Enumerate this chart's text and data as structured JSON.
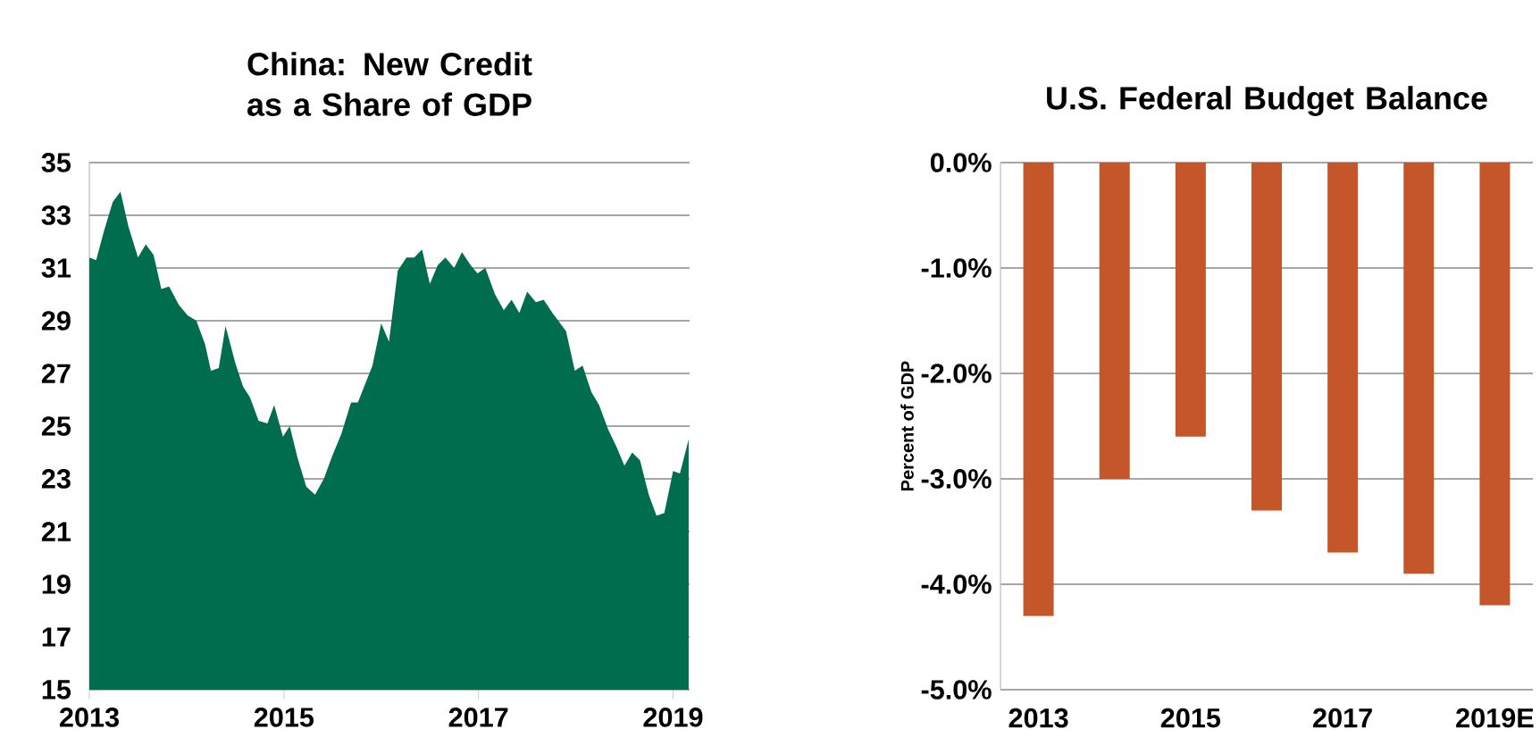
{
  "chart_data": [
    {
      "type": "area",
      "title": "China: New Credit as a Share of GDP",
      "color": "#006e4e",
      "x": [
        2013.0,
        2013.07,
        2013.15,
        2013.24,
        2013.32,
        2013.4,
        2013.5,
        2013.58,
        2013.66,
        2013.74,
        2013.82,
        2013.92,
        2014.01,
        2014.1,
        2014.19,
        2014.25,
        2014.33,
        2014.4,
        2014.5,
        2014.58,
        2014.65,
        2014.74,
        2014.83,
        2014.9,
        2014.99,
        2015.06,
        2015.14,
        2015.23,
        2015.32,
        2015.41,
        2015.5,
        2015.59,
        2015.69,
        2015.76,
        2015.91,
        2016.0,
        2016.08,
        2016.17,
        2016.26,
        2016.34,
        2016.42,
        2016.5,
        2016.58,
        2016.66,
        2016.75,
        2016.83,
        2016.92,
        2016.99,
        2017.07,
        2017.17,
        2017.26,
        2017.34,
        2017.42,
        2017.5,
        2017.59,
        2017.67,
        2017.76,
        2017.9,
        2017.99,
        2018.07,
        2018.16,
        2018.24,
        2018.33,
        2018.42,
        2018.5,
        2018.58,
        2018.66,
        2018.75,
        2018.83,
        2018.91,
        2019.0,
        2019.07,
        2019.16
      ],
      "values": [
        31.4,
        31.3,
        32.4,
        33.5,
        33.9,
        32.6,
        31.4,
        31.9,
        31.5,
        30.2,
        30.3,
        29.6,
        29.2,
        29.0,
        28.1,
        27.1,
        27.2,
        28.8,
        27.4,
        26.5,
        26.1,
        25.2,
        25.1,
        25.8,
        24.6,
        25.0,
        23.8,
        22.7,
        22.4,
        23.0,
        23.9,
        24.7,
        25.9,
        25.9,
        27.3,
        28.9,
        28.2,
        30.9,
        31.4,
        31.4,
        31.7,
        30.4,
        31.1,
        31.4,
        31.0,
        31.6,
        31.1,
        30.8,
        31.0,
        30.0,
        29.4,
        29.8,
        29.3,
        30.1,
        29.7,
        29.8,
        29.3,
        28.6,
        27.1,
        27.3,
        26.3,
        25.8,
        24.9,
        24.2,
        23.5,
        24.0,
        23.7,
        22.4,
        21.6,
        21.7,
        23.3,
        23.2,
        24.5
      ],
      "xlim": [
        2013,
        2019.17
      ],
      "xticks": [
        2013,
        2015,
        2017,
        2019
      ],
      "ylim": [
        15,
        35
      ],
      "yticks": [
        15,
        17,
        19,
        21,
        23,
        25,
        27,
        29,
        31,
        33,
        35
      ],
      "grid": "y"
    },
    {
      "type": "bar",
      "title": "U.S. Federal Budget Balance",
      "ylabel": "Percent of GDP",
      "color": "#c4562a",
      "categories": [
        "2013",
        null,
        "2015",
        null,
        "2017",
        null,
        "2019E"
      ],
      "values": [
        -4.3,
        -3.0,
        -2.6,
        -3.3,
        -3.7,
        -3.9,
        -4.2
      ],
      "ylim": [
        -5,
        0
      ],
      "yticks": [
        {
          "value": -5,
          "label": "-5.0%"
        },
        {
          "value": -4,
          "label": "-4.0%"
        },
        {
          "value": -3,
          "label": "-3.0%"
        },
        {
          "value": -2,
          "label": "-2.0%"
        },
        {
          "value": -1,
          "label": "-1.0%"
        },
        {
          "value": 0,
          "label": "0.0%"
        }
      ],
      "grid": "y"
    }
  ]
}
